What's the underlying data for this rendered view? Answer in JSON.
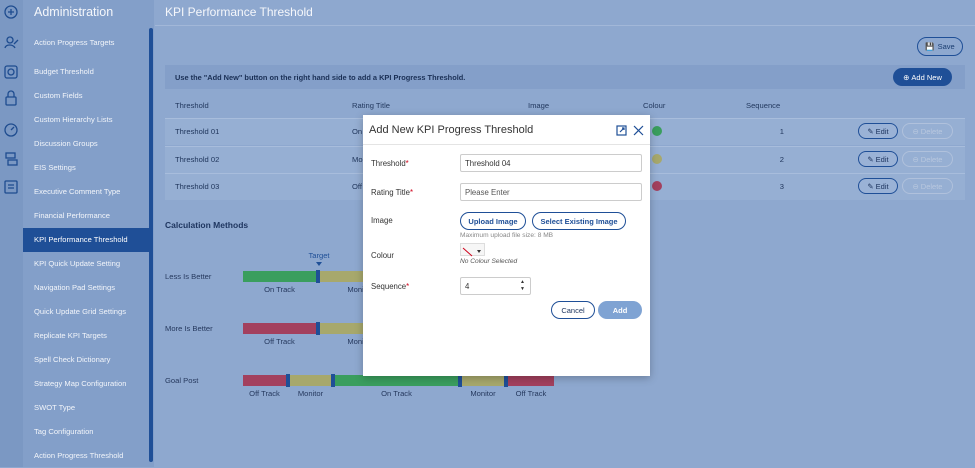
{
  "sidebar": {
    "title": "Administration",
    "selected": 8,
    "items": [
      "Action Progress Targets",
      "Budget Threshold",
      "Custom Fields",
      "Custom Hierarchy Lists",
      "Discussion Groups",
      "EIS Settings",
      "Executive Comment Type",
      "Financial Performance",
      "KPI Performance Threshold",
      "KPI Quick Update Setting",
      "Navigation Pad Settings",
      "Quick Update Grid Settings",
      "Replicate KPI Targets",
      "Spell Check Dictionary",
      "Strategy Map Configuration",
      "SWOT Type",
      "Tag Configuration",
      "Action Progress Threshold"
    ]
  },
  "header": {
    "title": "KPI Performance Threshold",
    "save": "Save"
  },
  "notice": {
    "text": "Use the \"Add New\" button on the right hand side to add a KPI Progress Threshold.",
    "add_new": "Add New"
  },
  "table": {
    "columns": [
      "Threshold",
      "Rating Title",
      "Image",
      "Colour",
      "Sequence"
    ],
    "edit": "Edit",
    "delete": "Delete",
    "rows": [
      {
        "threshold": "Threshold 01",
        "rating_title": "On Track",
        "colour": "#3a9e5e",
        "sequence": 1
      },
      {
        "threshold": "Threshold 02",
        "rating_title": "Monitor",
        "colour": "#a7a86c",
        "sequence": 2
      },
      {
        "threshold": "Threshold 03",
        "rating_title": "Off Track",
        "colour": "#a3405e",
        "sequence": 3
      }
    ]
  },
  "calculation": {
    "title": "Calculation Methods",
    "target": "Target",
    "methods": [
      {
        "name": "Less Is Better",
        "segments": [
          {
            "label": "On Track",
            "color": "#3a9e5e"
          },
          {
            "label": "Monitor",
            "color": "#a7a86c"
          }
        ]
      },
      {
        "name": "More Is Better",
        "segments": [
          {
            "label": "Off Track",
            "color": "#a3405e"
          },
          {
            "label": "Monitor",
            "color": "#a7a86c"
          }
        ]
      },
      {
        "name": "Goal Post",
        "segments": [
          {
            "label": "Off Track",
            "color": "#a3405e"
          },
          {
            "label": "Monitor",
            "color": "#a7a86c"
          },
          {
            "label": "On Track",
            "color": "#3a9e5e"
          },
          {
            "label": "Monitor",
            "color": "#a7a86c"
          },
          {
            "label": "Off Track",
            "color": "#a3405e"
          }
        ]
      }
    ]
  },
  "modal": {
    "title": "Add New KPI Progress Threshold",
    "threshold": {
      "label": "Threshold",
      "required": "*",
      "value": "Threshold 04"
    },
    "rating_title": {
      "label": "Rating Title",
      "required": "*",
      "placeholder": "Please Enter"
    },
    "image": {
      "label": "Image",
      "upload": "Upload Image",
      "select": "Select Existing Image",
      "hint": "Maximum upload file size: 8 MB"
    },
    "colour": {
      "label": "Colour",
      "status": "No Colour Selected"
    },
    "sequence": {
      "label": "Sequence",
      "required": "*",
      "value": 4
    },
    "cancel": "Cancel",
    "add": "Add"
  }
}
